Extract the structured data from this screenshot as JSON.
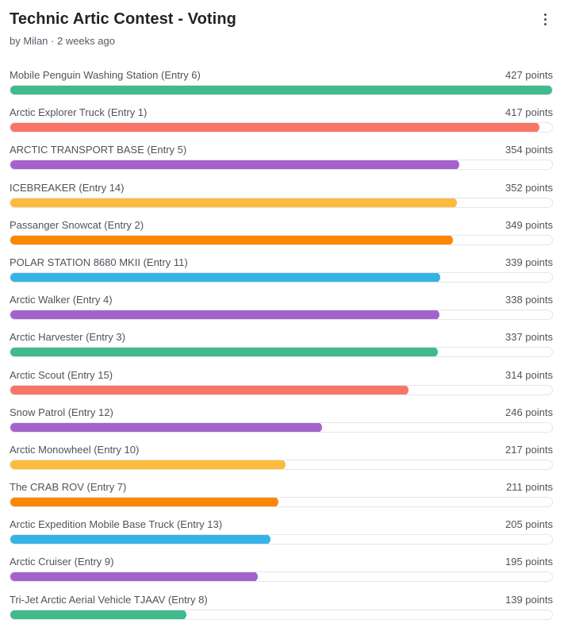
{
  "header": {
    "title": "Technic Artic Contest - Voting",
    "subtitle": "by Milan · 2 weeks ago"
  },
  "max_points": 427,
  "colors": {
    "green": "#3fbb8c",
    "red": "#fa7566",
    "purple": "#a463cc",
    "yellow": "#fdbb3c",
    "orange": "#fc8703",
    "blue": "#36b3e5"
  },
  "entries": [
    {
      "label": "Mobile Penguin Washing Station (Entry 6)",
      "points": "427 points",
      "value": 427,
      "color": "#3fbb8c"
    },
    {
      "label": "Arctic Explorer Truck (Entry 1)",
      "points": "417 points",
      "value": 417,
      "color": "#fa7566"
    },
    {
      "label": "ARCTIC TRANSPORT BASE (Entry 5)",
      "points": "354 points",
      "value": 354,
      "color": "#a463cc"
    },
    {
      "label": "ICEBREAKER (Entry 14)",
      "points": "352 points",
      "value": 352,
      "color": "#fdbb3c"
    },
    {
      "label": "Passanger Snowcat (Entry 2)",
      "points": "349 points",
      "value": 349,
      "color": "#fc8703"
    },
    {
      "label": "POLAR STATION 8680 MKII (Entry 11)",
      "points": "339 points",
      "value": 339,
      "color": "#36b3e5"
    },
    {
      "label": "Arctic Walker (Entry 4)",
      "points": "338 points",
      "value": 338,
      "color": "#a463cc"
    },
    {
      "label": "Arctic Harvester (Entry 3)",
      "points": "337 points",
      "value": 337,
      "color": "#3fbb8c"
    },
    {
      "label": "Arctic Scout (Entry 15)",
      "points": "314 points",
      "value": 314,
      "color": "#fa7566"
    },
    {
      "label": "Snow Patrol (Entry 12)",
      "points": "246 points",
      "value": 246,
      "color": "#a463cc"
    },
    {
      "label": "Arctic Monowheel (Entry 10)",
      "points": "217 points",
      "value": 217,
      "color": "#fdbb3c"
    },
    {
      "label": "The CRAB ROV (Entry 7)",
      "points": "211 points",
      "value": 211,
      "color": "#fc8703"
    },
    {
      "label": "Arctic Expedition Mobile Base Truck (Entry 13)",
      "points": "205 points",
      "value": 205,
      "color": "#36b3e5"
    },
    {
      "label": "Arctic Cruiser (Entry 9)",
      "points": "195 points",
      "value": 195,
      "color": "#a463cc"
    },
    {
      "label": "Tri-Jet Arctic Aerial Vehicle TJAAV (Entry 8)",
      "points": "139 points",
      "value": 139,
      "color": "#3fbb8c"
    }
  ]
}
